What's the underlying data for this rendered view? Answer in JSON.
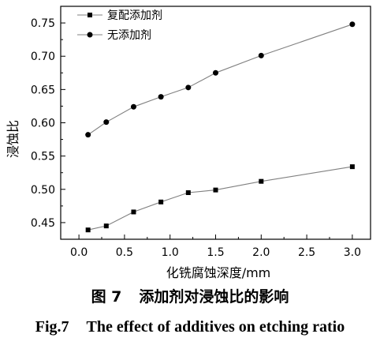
{
  "chart_data": {
    "type": "line",
    "x": [
      0.1,
      0.3,
      0.6,
      0.9,
      1.2,
      1.5,
      2.0,
      3.0
    ],
    "series": [
      {
        "name": "复配添加剂",
        "marker": "square",
        "values": [
          0.439,
          0.445,
          0.466,
          0.481,
          0.495,
          0.499,
          0.512,
          0.534
        ]
      },
      {
        "name": "无添加剂",
        "marker": "circle",
        "values": [
          0.582,
          0.601,
          0.624,
          0.639,
          0.653,
          0.675,
          0.701,
          0.748
        ]
      }
    ],
    "xlabel": "化铣腐蚀深度/mm",
    "ylabel": "浸蚀比",
    "xlim": [
      -0.2,
      3.2
    ],
    "ylim": [
      0.425,
      0.775
    ],
    "xticks": [
      "0.0",
      "0.5",
      "1.0",
      "1.5",
      "2.0",
      "2.5",
      "3.0"
    ],
    "yticks": [
      "0.45",
      "0.50",
      "0.55",
      "0.60",
      "0.65",
      "0.70",
      "0.75"
    ],
    "legend": "top-left",
    "grid": false,
    "line_color": "#808080",
    "marker_color": "#000000"
  },
  "caption": {
    "cn_number": "图 7",
    "cn_text": "添加剂对浸蚀比的影响",
    "en_number": "Fig.7",
    "en_text": "The effect of additives on etching ratio"
  }
}
